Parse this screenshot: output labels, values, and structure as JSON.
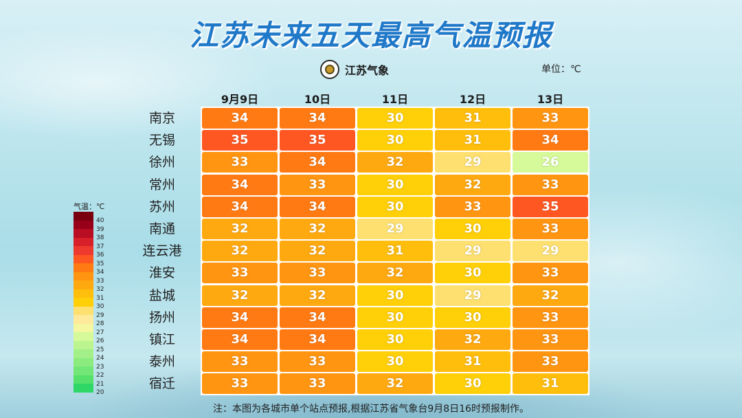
{
  "title": "江苏未来五天最高气温预报",
  "logo_text": "江苏气象",
  "unit": "单位：℃",
  "footnote": "注：本图为各城市单个站点预报,根据江苏省气象台9月8日16时预报制作。",
  "chart_data": {
    "type": "heatmap",
    "columns": [
      "9月9日",
      "10日",
      "11日",
      "12日",
      "13日"
    ],
    "rows": [
      "南京",
      "无锡",
      "徐州",
      "常州",
      "苏州",
      "南通",
      "连云港",
      "淮安",
      "盐城",
      "扬州",
      "镇江",
      "泰州",
      "宿迁"
    ],
    "values": [
      [
        34,
        34,
        30,
        31,
        33
      ],
      [
        35,
        35,
        30,
        31,
        34
      ],
      [
        33,
        34,
        32,
        29,
        26
      ],
      [
        34,
        33,
        30,
        32,
        33
      ],
      [
        34,
        34,
        30,
        33,
        35
      ],
      [
        32,
        32,
        29,
        30,
        33
      ],
      [
        32,
        32,
        31,
        29,
        29
      ],
      [
        33,
        33,
        32,
        30,
        33
      ],
      [
        32,
        32,
        30,
        29,
        32
      ],
      [
        34,
        34,
        30,
        30,
        33
      ],
      [
        34,
        34,
        30,
        32,
        33
      ],
      [
        33,
        33,
        30,
        31,
        33
      ],
      [
        33,
        33,
        32,
        30,
        31
      ]
    ],
    "legend": {
      "title": "气温：℃",
      "ticks": [
        40,
        39,
        38,
        37,
        36,
        35,
        34,
        33,
        32,
        31,
        30,
        29,
        28,
        27,
        26,
        25,
        24,
        23,
        22,
        21,
        20
      ],
      "colors": {
        "40": "#7a0010",
        "39": "#98001a",
        "38": "#b80d22",
        "37": "#d8202a",
        "36": "#ee3a2e",
        "35": "#ff5722",
        "34": "#ff7a12",
        "33": "#ff9510",
        "32": "#ffa910",
        "31": "#ffbd0c",
        "30": "#ffcf08",
        "29": "#fde070",
        "28": "#ffe99a",
        "27": "#f4f7a0",
        "26": "#d6f99a",
        "25": "#bcf58f",
        "24": "#a4f088",
        "23": "#8ceb7f",
        "22": "#72e677",
        "21": "#55e06c",
        "20": "#2fd866"
      }
    }
  }
}
